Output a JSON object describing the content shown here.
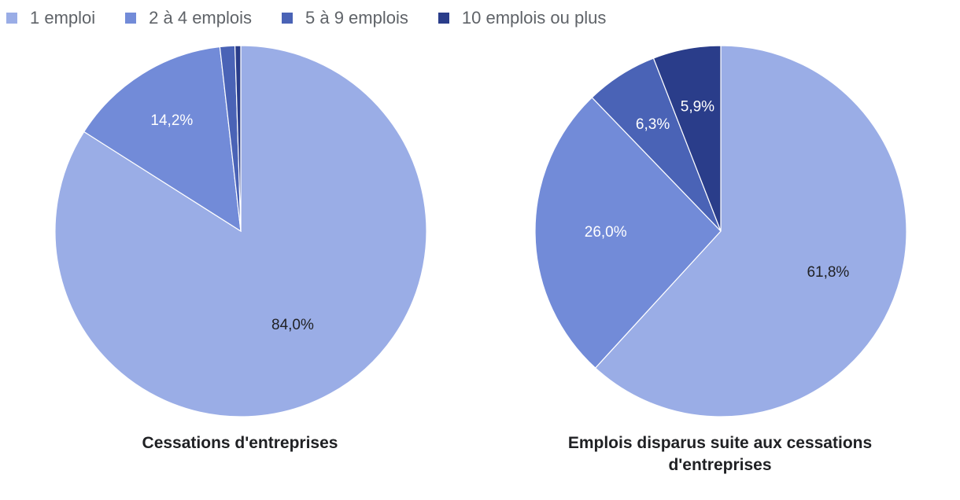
{
  "legend": [
    {
      "label": "1 emploi",
      "color": "#9aade6"
    },
    {
      "label": "2 à 4 emplois",
      "color": "#728bd8"
    },
    {
      "label": "5 à 9 emplois",
      "color": "#4a63b6"
    },
    {
      "label": "10 emplois ou plus",
      "color": "#2a3d8a"
    }
  ],
  "chart_data": [
    {
      "type": "pie",
      "title": "Cessations d'entreprises",
      "categories": [
        "1 emploi",
        "2 à 4 emplois",
        "5 à 9 emplois",
        "10 emplois ou plus"
      ],
      "values": [
        84.0,
        14.2,
        1.3,
        0.5
      ],
      "labels": [
        "84,0%",
        "14,2%",
        "",
        ""
      ],
      "label_colors": [
        "#202124",
        "#ffffff",
        "#ffffff",
        "#ffffff"
      ]
    },
    {
      "type": "pie",
      "title": "Emplois disparus suite aux cessations d'entreprises",
      "categories": [
        "1 emploi",
        "2 à 4 emplois",
        "5 à 9 emplois",
        "10 emplois ou plus"
      ],
      "values": [
        61.8,
        26.0,
        6.3,
        5.9
      ],
      "labels": [
        "61,8%",
        "26,0%",
        "6,3%",
        "5,9%"
      ],
      "label_colors": [
        "#202124",
        "#ffffff",
        "#ffffff",
        "#ffffff"
      ]
    }
  ]
}
